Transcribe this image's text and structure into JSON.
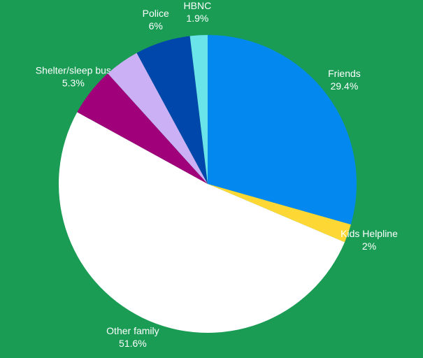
{
  "chart_data": {
    "type": "pie",
    "categories": [
      "Friends",
      "Kids Helpline",
      "Other family",
      "Shelter/sleep bus",
      null,
      "Police",
      "HBNC"
    ],
    "values": [
      29.4,
      2,
      51.6,
      5.3,
      3.8,
      6,
      1.9
    ],
    "value_labels": [
      "29.4%",
      "2%",
      "51.6%",
      "5.3%",
      null,
      "6%",
      "1.9%"
    ],
    "colors": [
      "#0288ef",
      "#fdd835",
      "#ffffff",
      "#a0007a",
      "#cbb0f5",
      "#0047ab",
      "#6ae3e9"
    ],
    "background": "#1a9c55"
  }
}
